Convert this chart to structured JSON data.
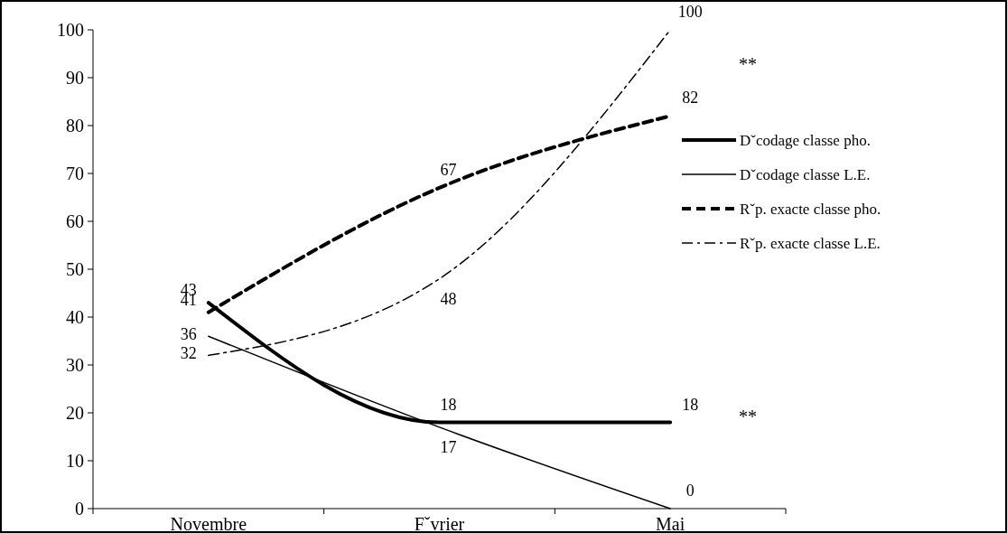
{
  "chart_data": {
    "type": "line",
    "categories": [
      "Novembre",
      "Fˇvrier",
      "Mai"
    ],
    "series": [
      {
        "name": "Dˇcodage classe pho.",
        "color": "#000000",
        "line_style": "solid",
        "values": [
          43,
          18,
          18
        ]
      },
      {
        "name": "Dˇcodage classe L.E.",
        "color": "#000000",
        "line_style": "solid",
        "values": [
          36,
          17,
          0
        ]
      },
      {
        "name": "Rˇp. exacte classe pho.",
        "color": "#000000",
        "line_style": "dashed",
        "values": [
          41,
          67,
          82
        ]
      },
      {
        "name": "Rˇp. exacte classe L.E.",
        "color": "#000000",
        "line_style": "dashed",
        "values": [
          32,
          48,
          100
        ]
      }
    ],
    "ylim": [
      0,
      100
    ],
    "yticks": [
      0,
      10,
      20,
      30,
      40,
      50,
      60,
      70,
      80,
      90,
      100
    ],
    "grid": false,
    "legend": "right",
    "marker": "none",
    "data_labels": true,
    "annotations": [
      "**",
      "**"
    ]
  }
}
